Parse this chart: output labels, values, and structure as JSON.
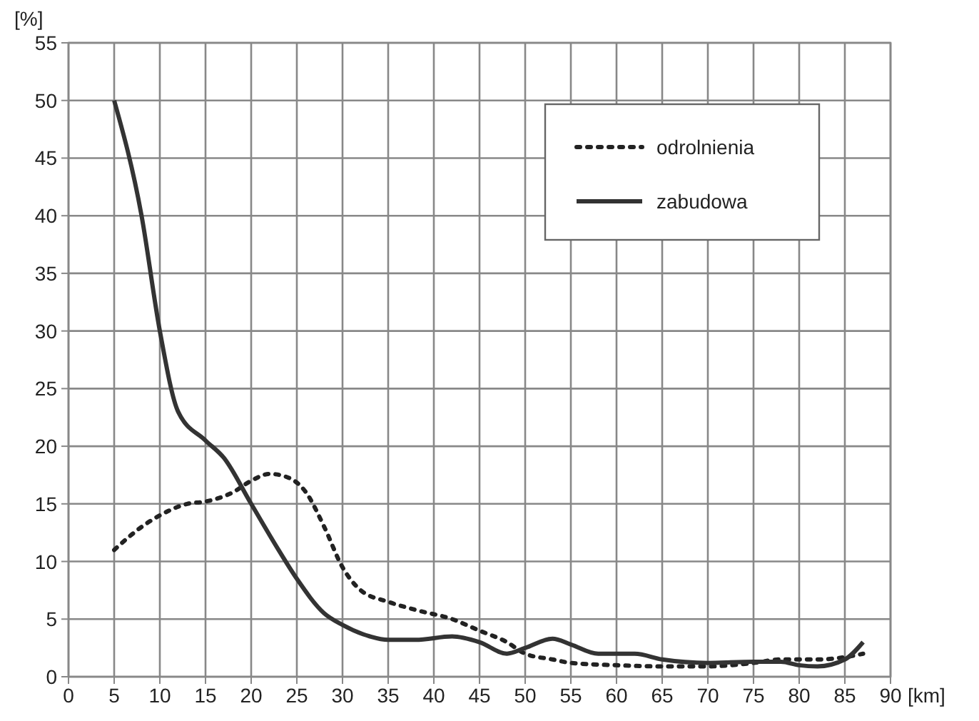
{
  "chart_data": {
    "type": "line",
    "xlabel": "[km]",
    "ylabel": "[%]",
    "xlim": [
      0,
      90
    ],
    "ylim": [
      0,
      55
    ],
    "xticks": [
      0,
      5,
      10,
      15,
      20,
      25,
      30,
      35,
      40,
      45,
      50,
      55,
      60,
      65,
      70,
      75,
      80,
      85,
      90
    ],
    "yticks": [
      0,
      5,
      10,
      15,
      20,
      25,
      30,
      35,
      40,
      45,
      50,
      55
    ],
    "grid": true,
    "legend": "top right",
    "series": [
      {
        "name": "odrolnienia",
        "color": "#222222",
        "line_style": "dotted",
        "x": [
          5,
          8,
          10,
          13,
          15,
          18,
          20,
          22,
          24,
          26,
          28,
          30,
          32,
          35,
          38,
          42,
          45,
          48,
          50,
          53,
          55,
          60,
          65,
          70,
          75,
          78,
          82,
          85,
          87
        ],
        "values": [
          11,
          13,
          14,
          15,
          15.2,
          16,
          17,
          17.6,
          17.3,
          16,
          13,
          9.5,
          7.5,
          6.5,
          5.8,
          5,
          4,
          3,
          2,
          1.5,
          1.2,
          1,
          0.9,
          0.9,
          1.2,
          1.5,
          1.5,
          1.7,
          2
        ]
      },
      {
        "name": "zabudowa",
        "color": "#333333",
        "line_style": "solid",
        "x": [
          5,
          8,
          10,
          12,
          15,
          17,
          20,
          23,
          25,
          28,
          30,
          33,
          35,
          38,
          42,
          45,
          48,
          50,
          53,
          55,
          58,
          62,
          65,
          70,
          75,
          78,
          80,
          82,
          85,
          87
        ],
        "values": [
          50,
          40,
          30,
          23,
          20.5,
          19,
          15,
          11,
          8.5,
          5.5,
          4.5,
          3.5,
          3.2,
          3.2,
          3.5,
          3,
          2,
          2.5,
          3.3,
          2.8,
          2,
          2,
          1.5,
          1.2,
          1.3,
          1.3,
          1,
          0.9,
          1.5,
          3
        ]
      }
    ]
  }
}
